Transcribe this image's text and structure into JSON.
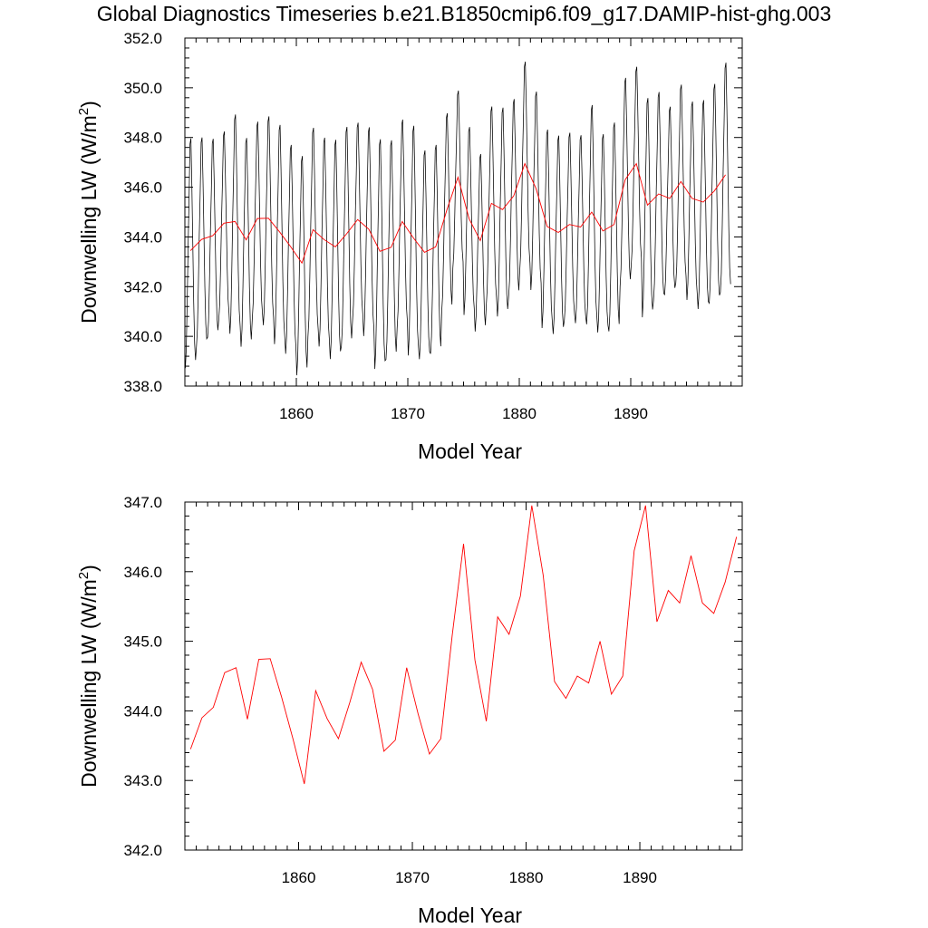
{
  "title": "Global Diagnostics Timeseries b.e21.B1850cmip6.f09_g17.DAMIP-hist-ghg.003",
  "colors": {
    "monthly": "#000000",
    "annual": "#ff0000"
  },
  "chart_data": [
    {
      "type": "line",
      "panel": "top",
      "xlabel": "Model Year",
      "ylabel_main": "Downwelling LW (W/m",
      "ylabel_sup": "2",
      "ylabel_close": ")",
      "xlim": [
        1850,
        1900
      ],
      "ylim": [
        338.0,
        352.0
      ],
      "xticks": [
        1860,
        1870,
        1880,
        1890
      ],
      "yticks": [
        "338.0",
        "340.0",
        "342.0",
        "344.0",
        "346.0",
        "348.0",
        "350.0",
        "352.0"
      ],
      "series": [
        {
          "kind": "monthly",
          "color": "#000000",
          "start_year": 1850,
          "monthly_offsets": [
            -4.3,
            -3.6,
            -1.9,
            0.2,
            1.9,
            3.9,
            4.1,
            2.4,
            0.3,
            -1.9,
            -3.4,
            -4.0
          ],
          "annual_amplitude": [
            1.1,
            1.0,
            0.95,
            0.9,
            1.05,
            1.0,
            0.95,
            1.0,
            1.05,
            1.0,
            1.05,
            1.0,
            1.0,
            1.05,
            1.05,
            0.95,
            1.0,
            1.1,
            1.05,
            1.0,
            1.1,
            1.0,
            1.0,
            0.95,
            0.85,
            0.9,
            0.85,
            0.95,
            1.0,
            0.95,
            1.0,
            0.95,
            0.95,
            0.95,
            0.9,
            0.9,
            1.05,
            0.95,
            1.0,
            1.0,
            0.95,
            1.05,
            1.0,
            0.9,
            0.95,
            0.95,
            1.0,
            1.05,
            1.1
          ]
        },
        {
          "kind": "annual",
          "color": "#ff0000",
          "x": [
            1850.5,
            1851.5,
            1852.5,
            1853.5,
            1854.5,
            1855.5,
            1856.5,
            1857.5,
            1858.5,
            1859.5,
            1860.5,
            1861.5,
            1862.5,
            1863.5,
            1864.5,
            1865.5,
            1866.5,
            1867.5,
            1868.5,
            1869.5,
            1870.5,
            1871.5,
            1872.5,
            1873.5,
            1874.5,
            1875.5,
            1876.5,
            1877.5,
            1878.5,
            1879.5,
            1880.5,
            1881.5,
            1882.5,
            1883.5,
            1884.5,
            1885.5,
            1886.5,
            1887.5,
            1888.5,
            1889.5,
            1890.5,
            1891.5,
            1892.5,
            1893.5,
            1894.5,
            1895.5,
            1896.5,
            1897.5,
            1898.5
          ],
          "values": [
            343.45,
            343.9,
            344.05,
            344.55,
            344.62,
            343.88,
            344.74,
            344.75,
            344.2,
            343.6,
            342.95,
            344.29,
            343.89,
            343.6,
            344.12,
            344.7,
            344.31,
            343.42,
            343.58,
            344.62,
            343.96,
            343.38,
            343.6,
            345.08,
            346.4,
            344.73,
            343.85,
            345.35,
            345.1,
            345.65,
            346.95,
            345.95,
            344.42,
            344.18,
            344.5,
            344.4,
            345.0,
            344.24,
            344.5,
            346.3,
            346.95,
            345.28,
            345.73,
            345.55,
            346.23,
            345.55,
            345.4,
            345.85,
            346.5
          ]
        }
      ]
    },
    {
      "type": "line",
      "panel": "bottom",
      "xlabel": "Model Year",
      "ylabel_main": "Downwelling LW (W/m",
      "ylabel_sup": "2",
      "ylabel_close": ")",
      "xlim": [
        1850,
        1899
      ],
      "ylim": [
        342.0,
        347.0
      ],
      "xticks": [
        1860,
        1870,
        1880,
        1890
      ],
      "yticks": [
        "342.0",
        "343.0",
        "344.0",
        "345.0",
        "346.0",
        "347.0"
      ],
      "series": [
        {
          "kind": "annual",
          "color": "#ff0000",
          "x": [
            1850.5,
            1851.5,
            1852.5,
            1853.5,
            1854.5,
            1855.5,
            1856.5,
            1857.5,
            1858.5,
            1859.5,
            1860.5,
            1861.5,
            1862.5,
            1863.5,
            1864.5,
            1865.5,
            1866.5,
            1867.5,
            1868.5,
            1869.5,
            1870.5,
            1871.5,
            1872.5,
            1873.5,
            1874.5,
            1875.5,
            1876.5,
            1877.5,
            1878.5,
            1879.5,
            1880.5,
            1881.5,
            1882.5,
            1883.5,
            1884.5,
            1885.5,
            1886.5,
            1887.5,
            1888.5,
            1889.5,
            1890.5,
            1891.5,
            1892.5,
            1893.5,
            1894.5,
            1895.5,
            1896.5,
            1897.5,
            1898.5
          ],
          "values": [
            343.45,
            343.9,
            344.05,
            344.55,
            344.62,
            343.88,
            344.74,
            344.75,
            344.2,
            343.6,
            342.95,
            344.29,
            343.89,
            343.6,
            344.12,
            344.7,
            344.31,
            343.42,
            343.58,
            344.62,
            343.96,
            343.38,
            343.6,
            345.08,
            346.4,
            344.73,
            343.85,
            345.35,
            345.1,
            345.65,
            346.95,
            345.95,
            344.42,
            344.18,
            344.5,
            344.4,
            345.0,
            344.24,
            344.5,
            346.3,
            346.95,
            345.28,
            345.73,
            345.55,
            346.23,
            345.55,
            345.4,
            345.85,
            346.5
          ]
        }
      ]
    }
  ]
}
